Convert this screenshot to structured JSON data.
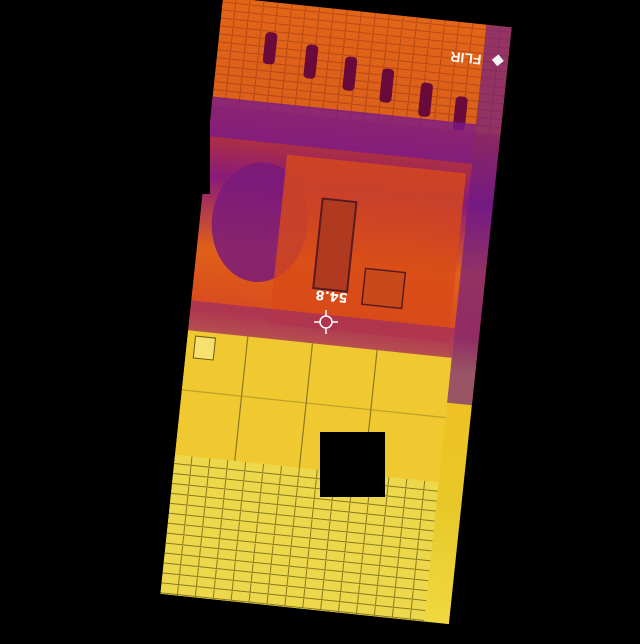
{
  "photo": {
    "kind": "thermal-camera-image",
    "brand_mark": "FLIR",
    "spot_reading": "54.8",
    "palette": [
      "#3a0a5a",
      "#7a1a8a",
      "#c02a60",
      "#e85a10",
      "#f08020",
      "#f0c020",
      "#f5e060"
    ],
    "icons": [
      "flir-logo-icon",
      "crosshair-icon"
    ]
  }
}
